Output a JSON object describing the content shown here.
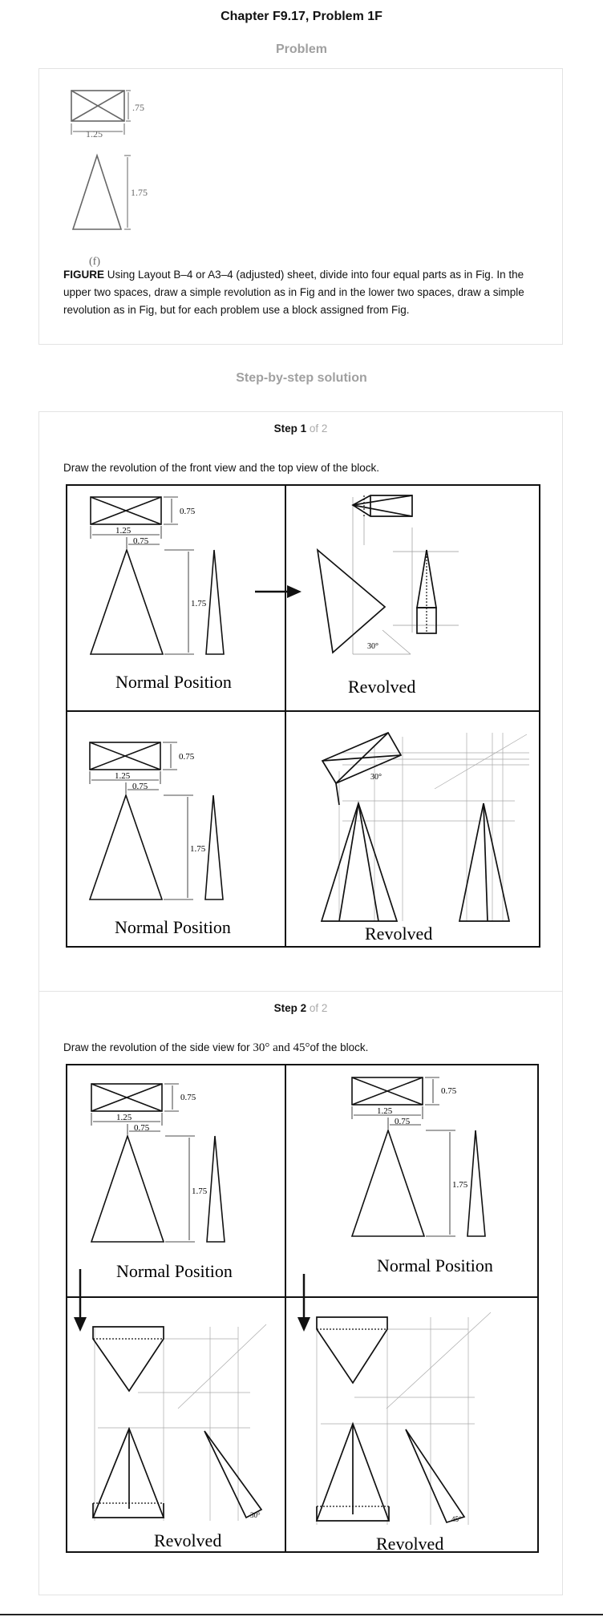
{
  "header": {
    "title": "Chapter F9.17, Problem 1F"
  },
  "problem": {
    "section_title": "Problem",
    "figure": {
      "dim_top": ".75",
      "dim_width": "1.25",
      "dim_height": "1.75",
      "caption": "(f)"
    },
    "label": "FIGURE",
    "text": "Using Layout B–4 or A3–4 (adjusted) sheet, divide into four equal parts as in Fig. In the upper two spaces, draw a simple revolution as in Fig and in the lower two spaces, draw a simple revolution as in Fig, but for each problem use a block assigned from Fig."
  },
  "solution": {
    "section_title": "Step-by-step solution",
    "steps": [
      {
        "label": "Step 1",
        "of": "of 2",
        "text": "Draw the revolution of the front view and the top view of the block.",
        "panels": {
          "normal": "Normal Position",
          "revolved": "Revolved",
          "angle": "30°"
        }
      },
      {
        "label": "Step 2",
        "of": "of 2",
        "text_before": "Draw the revolution of the side view for",
        "math": "30° and 45°",
        "text_after": "of the block.",
        "panels": {
          "normal": "Normal Position",
          "revolved": "Revolved",
          "angle30": "30°",
          "angle45": "45°"
        }
      }
    ],
    "dims": {
      "top": "0.75",
      "width": "1.25",
      "offset": "0.75",
      "height": "1.75"
    }
  }
}
